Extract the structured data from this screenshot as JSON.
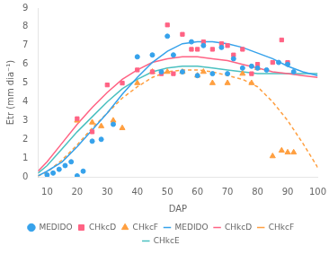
{
  "chart_data": {
    "type": "line",
    "xlabel": "DAP",
    "ylabel": "Etr (mm dia⁻¹)",
    "xlim": [
      7,
      100
    ],
    "ylim": [
      0,
      9
    ],
    "xticks": [
      10,
      20,
      30,
      40,
      50,
      60,
      70,
      80,
      90,
      100
    ],
    "yticks": [
      0,
      1,
      2,
      3,
      4,
      5,
      6,
      7,
      8,
      9
    ],
    "grid": false,
    "legend": "bottom",
    "series": [
      {
        "name": "MEDIDO",
        "type": "line",
        "line_style": "solid",
        "x": [
          7,
          10,
          15,
          20,
          25,
          30,
          35,
          40,
          45,
          50,
          55,
          60,
          65,
          70,
          75,
          80,
          85,
          90,
          95,
          100
        ],
        "values": [
          0.05,
          0.3,
          0.8,
          1.6,
          2.5,
          3.4,
          4.4,
          5.3,
          6.1,
          6.7,
          7.1,
          7.2,
          7.2,
          7.1,
          6.9,
          6.6,
          6.3,
          5.9,
          5.6,
          5.4
        ]
      },
      {
        "name": "CHkcD",
        "type": "line",
        "line_style": "solid",
        "x": [
          7,
          10,
          15,
          20,
          25,
          30,
          35,
          40,
          45,
          50,
          55,
          60,
          65,
          70,
          75,
          80,
          85,
          90,
          95,
          100
        ],
        "values": [
          0.3,
          0.8,
          1.8,
          2.8,
          3.7,
          4.5,
          5.2,
          5.7,
          6.1,
          6.3,
          6.4,
          6.4,
          6.3,
          6.2,
          6.0,
          5.8,
          5.6,
          5.5,
          5.4,
          5.3
        ]
      },
      {
        "name": "CHkcF",
        "type": "line",
        "line_style": "dashed",
        "x": [
          7,
          10,
          15,
          20,
          25,
          30,
          35,
          40,
          45,
          50,
          55,
          60,
          65,
          70,
          75,
          80,
          85,
          90,
          95,
          100
        ],
        "values": [
          0.05,
          0.25,
          0.9,
          1.7,
          2.6,
          3.4,
          4.2,
          4.8,
          5.3,
          5.6,
          5.7,
          5.7,
          5.6,
          5.4,
          5.2,
          4.8,
          4.0,
          3.0,
          1.8,
          0.5
        ]
      },
      {
        "name": "CHkcE",
        "type": "line",
        "line_style": "solid",
        "x": [
          7,
          10,
          15,
          20,
          25,
          30,
          35,
          40,
          45,
          50,
          55,
          60,
          65,
          70,
          75,
          80,
          85,
          90,
          95,
          100
        ],
        "values": [
          0.2,
          0.6,
          1.5,
          2.4,
          3.2,
          4.0,
          4.7,
          5.2,
          5.6,
          5.8,
          5.9,
          5.9,
          5.8,
          5.7,
          5.6,
          5.5,
          5.5,
          5.5,
          5.5,
          5.5
        ]
      },
      {
        "name": "MEDIDO",
        "type": "scatter",
        "marker": "circle",
        "x": [
          10,
          12,
          14,
          16,
          18,
          20,
          22,
          25,
          28,
          32,
          40,
          45,
          48,
          50,
          52,
          55,
          58,
          60,
          62,
          65,
          68,
          70,
          72,
          75,
          78,
          80,
          83,
          87,
          90,
          92
        ],
        "values": [
          0.1,
          0.2,
          0.4,
          0.6,
          0.8,
          0.05,
          0.3,
          1.9,
          2.0,
          2.8,
          6.4,
          6.5,
          5.6,
          7.5,
          6.5,
          5.6,
          7.2,
          5.4,
          7.0,
          5.5,
          6.9,
          5.5,
          6.3,
          5.8,
          5.9,
          5.8,
          5.7,
          6.1,
          6.0,
          5.6
        ]
      },
      {
        "name": "CHkcD",
        "type": "scatter",
        "marker": "square",
        "x": [
          20,
          25,
          30,
          35,
          40,
          45,
          48,
          50,
          52,
          55,
          58,
          60,
          62,
          65,
          68,
          70,
          72,
          75,
          78,
          80,
          85,
          88,
          90
        ],
        "values": [
          3.1,
          2.4,
          4.9,
          5.0,
          5.7,
          5.6,
          5.5,
          8.1,
          5.5,
          7.6,
          6.8,
          6.8,
          7.2,
          6.8,
          7.1,
          7.0,
          6.5,
          6.8,
          5.5,
          6.0,
          6.1,
          7.3,
          6.1
        ]
      },
      {
        "name": "CHkcF",
        "type": "scatter",
        "marker": "triangle",
        "x": [
          20,
          25,
          28,
          32,
          35,
          40,
          45,
          50,
          55,
          60,
          62,
          65,
          70,
          75,
          78,
          80,
          85,
          88,
          90,
          92
        ],
        "values": [
          3.0,
          2.9,
          2.7,
          3.0,
          2.6,
          5.0,
          5.6,
          5.6,
          5.6,
          5.4,
          5.6,
          5.0,
          5.0,
          5.5,
          5.0,
          5.8,
          1.1,
          1.4,
          1.3,
          1.3
        ]
      }
    ]
  }
}
